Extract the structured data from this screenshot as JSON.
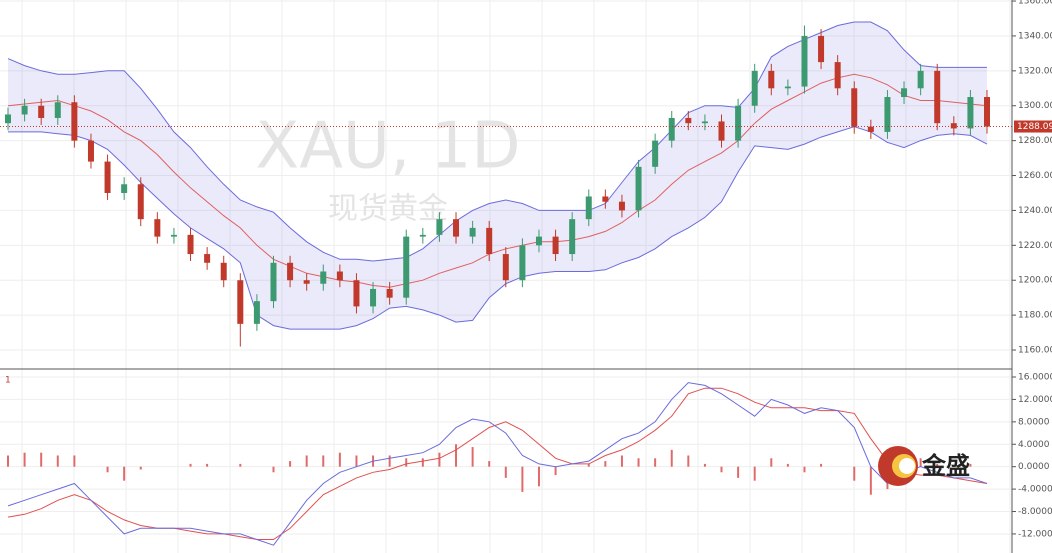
{
  "chart_data": [
    {
      "type": "candlestick",
      "watermark": "XAU, 1D",
      "watermark_sub": "现货黄金",
      "up_color": "#3d9970",
      "down_color": "#c0392b",
      "open": [
        1290,
        1295,
        1300,
        1293,
        1302,
        1280,
        1268,
        1250,
        1255,
        1235,
        1225,
        1226,
        1215,
        1210,
        1200,
        1175,
        1188,
        1210,
        1200,
        1198,
        1205,
        1200,
        1185,
        1195,
        1190,
        1225,
        1226,
        1235,
        1225,
        1230,
        1215,
        1200,
        1220,
        1225,
        1215,
        1235,
        1248,
        1245,
        1240,
        1265,
        1280,
        1293,
        1290,
        1291,
        1280,
        1300,
        1320,
        1310,
        1311,
        1340,
        1325,
        1310,
        1288,
        1285,
        1305,
        1310,
        1320,
        1290,
        1287,
        1305
      ],
      "high": [
        1299,
        1304,
        1304,
        1306,
        1306,
        1284,
        1272,
        1259,
        1259,
        1239,
        1230,
        1230,
        1219,
        1214,
        1204,
        1192,
        1214,
        1214,
        1204,
        1209,
        1209,
        1204,
        1199,
        1199,
        1229,
        1230,
        1239,
        1239,
        1234,
        1234,
        1219,
        1224,
        1229,
        1229,
        1239,
        1252,
        1252,
        1249,
        1269,
        1284,
        1297,
        1297,
        1295,
        1295,
        1304,
        1324,
        1324,
        1315,
        1346,
        1344,
        1329,
        1314,
        1292,
        1309,
        1314,
        1324,
        1324,
        1294,
        1309,
        1309
      ],
      "low": [
        1286,
        1291,
        1289,
        1289,
        1276,
        1264,
        1246,
        1246,
        1231,
        1221,
        1221,
        1211,
        1206,
        1196,
        1162,
        1171,
        1184,
        1196,
        1194,
        1194,
        1196,
        1181,
        1181,
        1186,
        1186,
        1221,
        1222,
        1221,
        1221,
        1211,
        1196,
        1196,
        1216,
        1211,
        1211,
        1231,
        1241,
        1236,
        1236,
        1261,
        1276,
        1286,
        1286,
        1276,
        1276,
        1296,
        1306,
        1306,
        1307,
        1321,
        1306,
        1284,
        1281,
        1281,
        1301,
        1306,
        1286,
        1283,
        1283,
        1284
      ],
      "close": [
        1295,
        1300,
        1293,
        1302,
        1280,
        1268,
        1250,
        1255,
        1235,
        1225,
        1226,
        1215,
        1210,
        1200,
        1175,
        1188,
        1210,
        1200,
        1198,
        1205,
        1200,
        1185,
        1195,
        1190,
        1225,
        1226,
        1235,
        1225,
        1230,
        1215,
        1200,
        1220,
        1225,
        1215,
        1235,
        1248,
        1245,
        1240,
        1265,
        1280,
        1293,
        1290,
        1291,
        1280,
        1300,
        1320,
        1310,
        1311,
        1340,
        1325,
        1310,
        1288,
        1285,
        1305,
        1310,
        1320,
        1290,
        1287,
        1305,
        1288.09
      ],
      "upper_band": [
        1327,
        1323,
        1320,
        1318,
        1318,
        1319,
        1320,
        1320,
        1310,
        1298,
        1285,
        1276,
        1265,
        1255,
        1246,
        1242,
        1239,
        1230,
        1222,
        1216,
        1212,
        1212,
        1211,
        1212,
        1213,
        1218,
        1226,
        1234,
        1240,
        1244,
        1246,
        1244,
        1240,
        1240,
        1240,
        1240,
        1244,
        1256,
        1268,
        1276,
        1286,
        1296,
        1300,
        1300,
        1299,
        1310,
        1328,
        1334,
        1338,
        1342,
        1346,
        1348,
        1348,
        1343,
        1332,
        1323,
        1322,
        1322,
        1322,
        1322
      ],
      "middle_band": [
        1300,
        1301,
        1302,
        1303,
        1300,
        1297,
        1292,
        1285,
        1280,
        1272,
        1262,
        1253,
        1245,
        1237,
        1230,
        1220,
        1212,
        1208,
        1204,
        1202,
        1200,
        1199,
        1197,
        1196,
        1198,
        1200,
        1204,
        1207,
        1210,
        1215,
        1218,
        1220,
        1222,
        1222,
        1223,
        1225,
        1228,
        1233,
        1240,
        1246,
        1255,
        1263,
        1268,
        1273,
        1280,
        1290,
        1298,
        1303,
        1308,
        1313,
        1316,
        1318,
        1316,
        1312,
        1306,
        1303,
        1303,
        1302,
        1301,
        1300
      ],
      "lower_band": [
        1285,
        1285,
        1285,
        1284,
        1283,
        1280,
        1275,
        1266,
        1256,
        1247,
        1238,
        1230,
        1224,
        1218,
        1210,
        1180,
        1174,
        1172,
        1172,
        1172,
        1172,
        1174,
        1178,
        1184,
        1185,
        1183,
        1180,
        1176,
        1177,
        1190,
        1198,
        1202,
        1204,
        1205,
        1205,
        1205,
        1206,
        1210,
        1213,
        1218,
        1225,
        1230,
        1236,
        1245,
        1262,
        1277,
        1276,
        1275,
        1278,
        1282,
        1285,
        1288,
        1285,
        1279,
        1276,
        1280,
        1283,
        1284,
        1283,
        1278
      ],
      "band_color": "#6b6bdc",
      "middle_color": "#e06060",
      "last_value": {
        "value": 1288.09,
        "label": "1288.09"
      },
      "ylim": [
        1149.7,
        1360.6
      ],
      "yticks": [
        {
          "value": 1160,
          "label": "1160.00"
        },
        {
          "value": 1180,
          "label": "1180.00"
        },
        {
          "value": 1200,
          "label": "1200.00"
        },
        {
          "value": 1220,
          "label": "1220.00"
        },
        {
          "value": 1240,
          "label": "1240.00"
        },
        {
          "value": 1260,
          "label": "1260.00"
        },
        {
          "value": 1280,
          "label": "1280.00"
        },
        {
          "value": 1300,
          "label": "1300.00"
        },
        {
          "value": 1320,
          "label": "1320.00"
        },
        {
          "value": 1340,
          "label": "1340.00"
        },
        {
          "value": 1360,
          "label": "1360.00"
        }
      ],
      "grid": true
    },
    {
      "type": "macd",
      "panel_label": "1",
      "macd": [
        -7,
        -6,
        -5,
        -4,
        -3,
        -6,
        -9,
        -12,
        -11,
        -11,
        -11,
        -11,
        -11.5,
        -12,
        -12,
        -13,
        -14,
        -10,
        -6,
        -3,
        -1,
        0,
        1,
        1.5,
        2,
        2.5,
        4,
        7,
        8.5,
        8,
        6,
        2,
        0.5,
        0,
        0.5,
        1,
        3,
        5,
        6,
        8,
        12,
        15,
        14.5,
        13,
        11,
        9,
        12,
        11,
        9.5,
        10.5,
        10,
        7,
        0,
        -3,
        -1,
        0,
        -1,
        -2,
        -2,
        -3
      ],
      "signal": [
        -9,
        -8.5,
        -7.5,
        -6,
        -5,
        -6,
        -8,
        -9.5,
        -10.5,
        -11,
        -11,
        -11.5,
        -12,
        -12,
        -12.5,
        -13,
        -13,
        -11,
        -8,
        -5,
        -3.5,
        -2,
        -1,
        -0.5,
        0.5,
        1,
        1.5,
        3,
        5,
        7,
        8,
        6.5,
        4,
        1.5,
        0.5,
        0.5,
        2,
        3,
        4.5,
        6.5,
        9,
        13,
        14,
        14,
        13,
        11.5,
        10.5,
        10.5,
        10.5,
        10,
        10,
        9.5,
        5,
        1,
        -1,
        -1.5,
        -1.5,
        -2,
        -2.5,
        -3
      ],
      "histogram": [
        2,
        2.5,
        2.5,
        2,
        2,
        0,
        -1,
        -2.5,
        -0.5,
        0,
        0,
        0.5,
        0.5,
        0,
        0.5,
        0,
        -1,
        1,
        2,
        2,
        2.5,
        2,
        2,
        2,
        1.5,
        1.5,
        2.5,
        4,
        3.5,
        1,
        -2,
        -4.5,
        -3.5,
        -1.5,
        0,
        0.5,
        1,
        2,
        1.5,
        1.5,
        3,
        2,
        0.5,
        -1,
        -2,
        -2.5,
        1.5,
        0.5,
        -1,
        0.5,
        0,
        -2.5,
        -5,
        -4,
        0,
        1.5,
        0.5,
        0,
        0.5,
        0
      ],
      "macd_color": "#6b6bdc",
      "signal_color": "#e05050",
      "histogram_color": "#e06a6a",
      "ylim": [
        -15.4,
        17.25
      ],
      "yticks": [
        {
          "value": 16,
          "label": "16.0000"
        },
        {
          "value": 12,
          "label": "12.0000"
        },
        {
          "value": 8,
          "label": "8.0000"
        },
        {
          "value": 4,
          "label": "4.0000"
        },
        {
          "value": 0,
          "label": "0.0000"
        },
        {
          "value": -4,
          "label": "-4.0000"
        },
        {
          "value": -8,
          "label": "-8.0000"
        },
        {
          "value": -12,
          "label": "-12.0000"
        }
      ],
      "grid": true
    }
  ],
  "logo": {
    "text": "金盛"
  }
}
